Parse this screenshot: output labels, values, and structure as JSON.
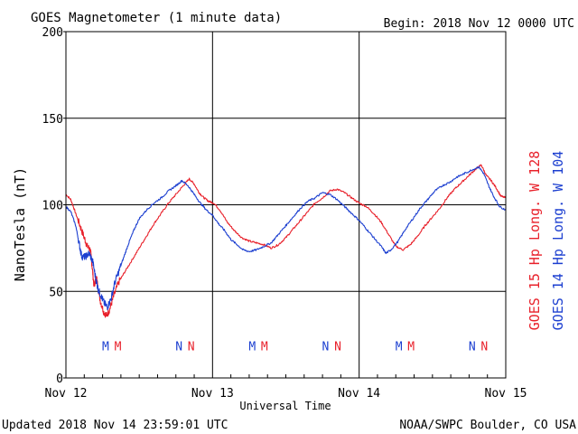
{
  "header": {
    "title": "GOES Magnetometer (1 minute data)",
    "begin": "Begin:  2018 Nov 12 0000 UTC"
  },
  "footer": {
    "updated": "Updated 2018 Nov 14 23:59:01 UTC",
    "source": "NOAA/SWPC Boulder, CO USA"
  },
  "colors": {
    "goes15": "#e8202a",
    "goes14": "#1c3fd0",
    "axis": "#000000",
    "background": "#ffffff"
  },
  "chart_data": {
    "type": "line",
    "title": "GOES Magnetometer (1 minute data)",
    "xlabel": "Universal Time",
    "ylabel": "NanoTesla (nT)",
    "ylim": [
      0,
      200
    ],
    "xlim": [
      0,
      72
    ],
    "x_unit": "hours since 2018 Nov 12 0000 UTC",
    "yticks": [
      0,
      50,
      100,
      150,
      200
    ],
    "xticks": [
      {
        "x": 0,
        "label": "Nov 12"
      },
      {
        "x": 24,
        "label": "Nov 13"
      },
      {
        "x": 48,
        "label": "Nov 14"
      },
      {
        "x": 72,
        "label": "Nov 15"
      }
    ],
    "grid": true,
    "series": [
      {
        "name": "GOES 15 Hp  Long. W 128",
        "color": "#e8202a",
        "points": [
          [
            0,
            106
          ],
          [
            0.8,
            103
          ],
          [
            1.5,
            96
          ],
          [
            2.3,
            88
          ],
          [
            3.0,
            81
          ],
          [
            3.5,
            76
          ],
          [
            4.0,
            74
          ],
          [
            4.3,
            64
          ],
          [
            4.6,
            53
          ],
          [
            5.0,
            58
          ],
          [
            5.6,
            45
          ],
          [
            6.2,
            38
          ],
          [
            6.7,
            36
          ],
          [
            7.2,
            40
          ],
          [
            7.8,
            47
          ],
          [
            8.6,
            55
          ],
          [
            9.6,
            61
          ],
          [
            10.8,
            68
          ],
          [
            12.0,
            75
          ],
          [
            13.2,
            82
          ],
          [
            14.4,
            89
          ],
          [
            15.6,
            95
          ],
          [
            16.8,
            101
          ],
          [
            18.0,
            106
          ],
          [
            19.2,
            111
          ],
          [
            20.2,
            115
          ],
          [
            21.0,
            112
          ],
          [
            21.8,
            107
          ],
          [
            22.6,
            104
          ],
          [
            23.4,
            102
          ],
          [
            24.2,
            101
          ],
          [
            25.2,
            97
          ],
          [
            26.4,
            90
          ],
          [
            27.6,
            85
          ],
          [
            28.8,
            81
          ],
          [
            30.0,
            79
          ],
          [
            31.2,
            78
          ],
          [
            32.4,
            77
          ],
          [
            33.6,
            75
          ],
          [
            34.8,
            77
          ],
          [
            36.0,
            81
          ],
          [
            37.2,
            86
          ],
          [
            38.4,
            91
          ],
          [
            39.6,
            96
          ],
          [
            40.8,
            101
          ],
          [
            42.0,
            104
          ],
          [
            43.2,
            108
          ],
          [
            44.4,
            109
          ],
          [
            45.6,
            107
          ],
          [
            46.8,
            104
          ],
          [
            48.0,
            101
          ],
          [
            49.2,
            99
          ],
          [
            50.4,
            95
          ],
          [
            51.6,
            90
          ],
          [
            52.8,
            83
          ],
          [
            54.0,
            76
          ],
          [
            55.2,
            74
          ],
          [
            56.4,
            77
          ],
          [
            57.6,
            82
          ],
          [
            58.8,
            88
          ],
          [
            60.0,
            93
          ],
          [
            61.2,
            98
          ],
          [
            62.4,
            104
          ],
          [
            63.6,
            109
          ],
          [
            64.8,
            113
          ],
          [
            66.0,
            117
          ],
          [
            67.2,
            121
          ],
          [
            68.0,
            123
          ],
          [
            68.8,
            117
          ],
          [
            69.6,
            114
          ],
          [
            70.4,
            110
          ],
          [
            71.2,
            105
          ],
          [
            72,
            104
          ]
        ]
      },
      {
        "name": "GOES 14 Hp  Long. W 104",
        "color": "#1c3fd0",
        "points": [
          [
            0,
            99
          ],
          [
            0.8,
            96
          ],
          [
            1.6,
            88
          ],
          [
            2.2,
            77
          ],
          [
            2.6,
            70
          ],
          [
            3.2,
            70
          ],
          [
            3.8,
            72
          ],
          [
            4.4,
            67
          ],
          [
            4.9,
            57
          ],
          [
            5.3,
            51
          ],
          [
            5.8,
            47
          ],
          [
            6.3,
            43
          ],
          [
            6.8,
            41
          ],
          [
            7.4,
            46
          ],
          [
            8.0,
            55
          ],
          [
            8.8,
            63
          ],
          [
            9.6,
            71
          ],
          [
            10.4,
            79
          ],
          [
            11.2,
            86
          ],
          [
            12.0,
            92
          ],
          [
            13.2,
            97
          ],
          [
            14.4,
            101
          ],
          [
            15.6,
            104
          ],
          [
            16.8,
            108
          ],
          [
            18.0,
            111
          ],
          [
            19.0,
            114
          ],
          [
            20.0,
            111
          ],
          [
            21.0,
            106
          ],
          [
            22.0,
            101
          ],
          [
            23.0,
            97
          ],
          [
            24.0,
            94
          ],
          [
            25.0,
            89
          ],
          [
            26.0,
            85
          ],
          [
            27.0,
            80
          ],
          [
            28.0,
            77
          ],
          [
            29.0,
            74
          ],
          [
            30.0,
            73
          ],
          [
            31.2,
            74
          ],
          [
            32.4,
            76
          ],
          [
            33.6,
            78
          ],
          [
            34.8,
            83
          ],
          [
            36.0,
            88
          ],
          [
            37.2,
            93
          ],
          [
            38.4,
            98
          ],
          [
            39.6,
            102
          ],
          [
            40.8,
            104
          ],
          [
            42.0,
            107
          ],
          [
            43.2,
            106
          ],
          [
            44.4,
            103
          ],
          [
            45.6,
            99
          ],
          [
            46.8,
            95
          ],
          [
            48.0,
            91
          ],
          [
            49.2,
            86
          ],
          [
            50.4,
            81
          ],
          [
            51.6,
            76
          ],
          [
            52.4,
            72
          ],
          [
            53.2,
            74
          ],
          [
            54.4,
            79
          ],
          [
            55.6,
            86
          ],
          [
            56.8,
            92
          ],
          [
            58.0,
            98
          ],
          [
            59.2,
            103
          ],
          [
            60.4,
            108
          ],
          [
            61.6,
            111
          ],
          [
            62.8,
            113
          ],
          [
            64.0,
            116
          ],
          [
            65.2,
            118
          ],
          [
            66.4,
            120
          ],
          [
            67.6,
            122
          ],
          [
            68.4,
            118
          ],
          [
            69.2,
            111
          ],
          [
            70.0,
            105
          ],
          [
            71.0,
            99
          ],
          [
            72,
            97
          ]
        ]
      }
    ],
    "annotations": [
      {
        "x": 6.5,
        "label": "M",
        "series": "GOES 14 Hp  Long. W 104"
      },
      {
        "x": 8.5,
        "label": "M",
        "series": "GOES 15 Hp  Long. W 128"
      },
      {
        "x": 18.5,
        "label": "N",
        "series": "GOES 14 Hp  Long. W 104"
      },
      {
        "x": 20.5,
        "label": "N",
        "series": "GOES 15 Hp  Long. W 128"
      },
      {
        "x": 30.5,
        "label": "M",
        "series": "GOES 14 Hp  Long. W 104"
      },
      {
        "x": 32.5,
        "label": "M",
        "series": "GOES 15 Hp  Long. W 128"
      },
      {
        "x": 42.5,
        "label": "N",
        "series": "GOES 14 Hp  Long. W 104"
      },
      {
        "x": 44.5,
        "label": "N",
        "series": "GOES 15 Hp  Long. W 128"
      },
      {
        "x": 54.5,
        "label": "M",
        "series": "GOES 14 Hp  Long. W 104"
      },
      {
        "x": 56.5,
        "label": "M",
        "series": "GOES 15 Hp  Long. W 128"
      },
      {
        "x": 66.5,
        "label": "N",
        "series": "GOES 14 Hp  Long. W 104"
      },
      {
        "x": 68.5,
        "label": "N",
        "series": "GOES 15 Hp  Long. W 128"
      }
    ],
    "annotation_level": 16
  }
}
